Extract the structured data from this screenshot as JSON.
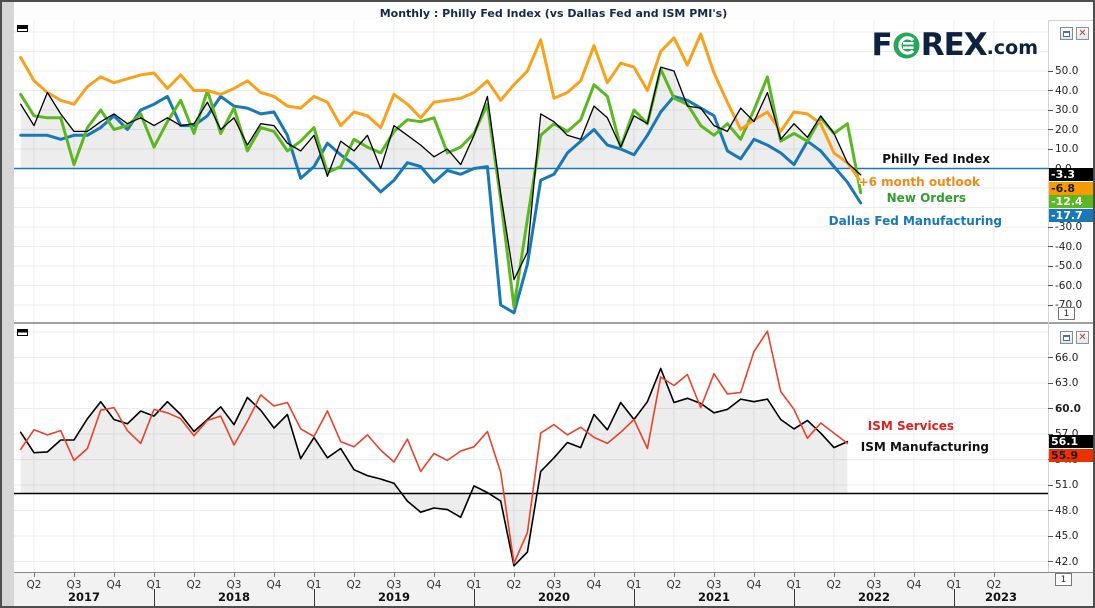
{
  "title": "Monthly : Philly Fed Index (vs Dallas Fed and ISM PMI's)",
  "logo": {
    "part1": "F",
    "part2": "REX",
    "part3": ".com",
    "circle_color": "#26a65b",
    "text_color": "#0e2240"
  },
  "panels": [
    {
      "pane_number": "1",
      "legend": [
        {
          "label": "Philly Fed Index",
          "color": "#111111"
        },
        {
          "label": "+6 month outlook",
          "color": "#f28a15"
        },
        {
          "label": "New Orders",
          "color": "#2f9e2f"
        },
        {
          "label": "Dallas Fed Manufacturing",
          "color": "#1878b8"
        }
      ],
      "badges": [
        {
          "value": "-3.3",
          "bg": "#000000",
          "fg": "#ffffff"
        },
        {
          "value": "-6.8",
          "bg": "#f79a00",
          "fg": "#1a1a1a"
        },
        {
          "value": "-12.4",
          "bg": "#5cb821",
          "fg": "#ffffff"
        },
        {
          "value": "-17.7",
          "bg": "#1878b8",
          "fg": "#ffffff"
        }
      ],
      "y_tick_labels": [
        50,
        40,
        30,
        20,
        10,
        0,
        -30,
        -40,
        -50,
        -60,
        -70
      ]
    },
    {
      "pane_number": "1",
      "legend": [
        {
          "label": "ISM Services",
          "color": "#e02020"
        },
        {
          "label": "ISM Manufacturing",
          "color": "#111111"
        }
      ],
      "badges": [
        {
          "value": "56.1",
          "bg": "#000000",
          "fg": "#ffffff"
        },
        {
          "value": "55.9",
          "bg": "#ee3000",
          "fg": "#1a1a1a"
        }
      ],
      "y_tick_labels": [
        66,
        63,
        60,
        57,
        54,
        51,
        48,
        45,
        42
      ]
    }
  ],
  "x_axis": {
    "quarters": [
      "Q2",
      "Q3",
      "Q4",
      "Q1",
      "Q2",
      "Q3",
      "Q4",
      "Q1",
      "Q2",
      "Q3",
      "Q4",
      "Q1",
      "Q2",
      "Q3",
      "Q4",
      "Q1",
      "Q2",
      "Q3",
      "Q4",
      "Q1",
      "Q2",
      "Q3",
      "Q4",
      "Q1",
      "Q2"
    ],
    "years": [
      "2017",
      "2018",
      "2019",
      "2020",
      "2021",
      "2022",
      "2023"
    ]
  },
  "chart_data": [
    {
      "type": "line",
      "title": "Philly Fed Index (vs Dallas Fed)",
      "x_frequency": "monthly",
      "start_month": "2017-03",
      "baseline": 0,
      "ylim": [
        -79,
        76
      ],
      "grid": true,
      "legend_position": "right-inline",
      "series": [
        {
          "name": "Philly Fed Index",
          "color": "#000000",
          "width": 1.3,
          "fill_to_baseline": true,
          "last_value": -3.3,
          "values": [
            33,
            22,
            39,
            28,
            19,
            19,
            24,
            28,
            23,
            26,
            22,
            26,
            22,
            23,
            34,
            20,
            26,
            12,
            23,
            22,
            13,
            9,
            17,
            -4,
            14,
            9,
            17,
            0,
            22,
            17,
            12,
            6,
            10,
            2,
            17,
            37,
            -13,
            -57,
            -43,
            28,
            24,
            17,
            15,
            32,
            26,
            11,
            27,
            23,
            52,
            50,
            32,
            31,
            22,
            19,
            31,
            24,
            39,
            15,
            23,
            16,
            27,
            18,
            3,
            -3.3
          ]
        },
        {
          "name": "+6 month outlook",
          "color": "#f9a11b",
          "width": 3,
          "last_value": -6.8,
          "values": [
            57,
            45,
            39,
            35,
            33,
            42,
            47,
            44,
            46,
            48,
            49,
            41,
            48,
            40,
            40,
            38,
            41,
            45,
            39,
            37,
            32,
            31,
            37,
            34,
            22,
            29,
            27,
            21,
            38,
            33,
            26,
            34,
            35,
            36,
            39,
            45,
            35,
            43,
            50,
            66,
            36,
            39,
            45,
            63,
            44,
            54,
            52,
            40,
            60,
            67,
            53,
            69,
            49,
            34,
            20,
            25,
            29,
            19,
            29,
            28,
            23,
            8,
            3,
            -6.8
          ]
        },
        {
          "name": "New Orders",
          "color": "#5cb821",
          "width": 3,
          "last_value": -12.4,
          "values": [
            38,
            27,
            26,
            26,
            2,
            21,
            30,
            20,
            22,
            28,
            11,
            24,
            35,
            18,
            40,
            18,
            31,
            9,
            21,
            19,
            9,
            14,
            21,
            -2,
            1,
            15,
            11,
            8,
            19,
            25,
            24,
            26,
            8,
            11,
            18,
            33,
            -16,
            -71,
            -26,
            17,
            23,
            19,
            25,
            43,
            37,
            11,
            30,
            23,
            51,
            36,
            33,
            22,
            17,
            23,
            15,
            30,
            47,
            14,
            18,
            14,
            26,
            18,
            23,
            -12.4
          ]
        },
        {
          "name": "Dallas Fed Manufacturing",
          "color": "#1878b8",
          "width": 3,
          "last_value": -17.7,
          "values": [
            17,
            17,
            17,
            15,
            17,
            17,
            21,
            27,
            20,
            30,
            33,
            37,
            22,
            22,
            27,
            37,
            32,
            31,
            28,
            29,
            17,
            -5,
            1,
            13,
            7,
            2,
            -5,
            -12,
            -6,
            3,
            1,
            -7,
            -1,
            -3,
            0,
            1,
            -70,
            -74,
            -49,
            -6,
            -3,
            8,
            14,
            20,
            12,
            10,
            7,
            17,
            29,
            37,
            35,
            31,
            27,
            9,
            5,
            15,
            12,
            8,
            2,
            14,
            9,
            1,
            -7,
            -17.7
          ]
        }
      ]
    },
    {
      "type": "line",
      "title": "ISM PMI's",
      "x_frequency": "monthly",
      "start_month": "2017-03",
      "baseline": 50,
      "ylim": [
        40.8,
        69.9
      ],
      "grid": true,
      "legend_position": "right-inline",
      "series": [
        {
          "name": "ISM Services",
          "color": "#e8432c",
          "width": 1.6,
          "last_value": 55.9,
          "values": [
            55.2,
            57.5,
            56.9,
            57.4,
            53.9,
            55.3,
            59.8,
            60.1,
            57.4,
            55.9,
            59.9,
            59.5,
            58.8,
            56.8,
            58.6,
            59.1,
            55.7,
            58.5,
            61.6,
            60.3,
            60.7,
            57.6,
            56.7,
            59.7,
            56.1,
            55.5,
            56.9,
            55.1,
            53.7,
            56.4,
            52.6,
            54.7,
            53.9,
            55.0,
            55.5,
            57.3,
            52.5,
            41.8,
            45.4,
            57.1,
            58.1,
            56.9,
            57.8,
            56.6,
            55.9,
            57.2,
            58.7,
            55.3,
            63.7,
            62.7,
            64.0,
            60.1,
            64.1,
            61.7,
            61.9,
            66.7,
            69.1,
            62.0,
            59.9,
            56.5,
            58.3,
            57.1,
            55.9
          ]
        },
        {
          "name": "ISM Manufacturing",
          "color": "#000000",
          "width": 1.6,
          "fill_to_baseline": true,
          "last_value": 56.1,
          "values": [
            57.2,
            54.8,
            54.9,
            56.3,
            56.3,
            58.8,
            60.8,
            58.7,
            58.2,
            59.7,
            59.1,
            60.8,
            59.3,
            57.3,
            58.7,
            60.2,
            58.1,
            61.3,
            59.8,
            57.7,
            59.3,
            54.1,
            56.6,
            54.2,
            55.3,
            52.8,
            52.1,
            51.7,
            51.2,
            49.1,
            47.8,
            48.3,
            48.1,
            47.2,
            50.9,
            50.1,
            49.1,
            41.5,
            43.1,
            52.6,
            54.2,
            56.0,
            55.4,
            59.3,
            57.5,
            60.7,
            58.7,
            60.8,
            64.7,
            60.7,
            61.2,
            60.6,
            59.5,
            59.9,
            61.1,
            60.8,
            61.1,
            58.7,
            57.6,
            58.6,
            57.1,
            55.4,
            56.1
          ]
        }
      ]
    }
  ]
}
